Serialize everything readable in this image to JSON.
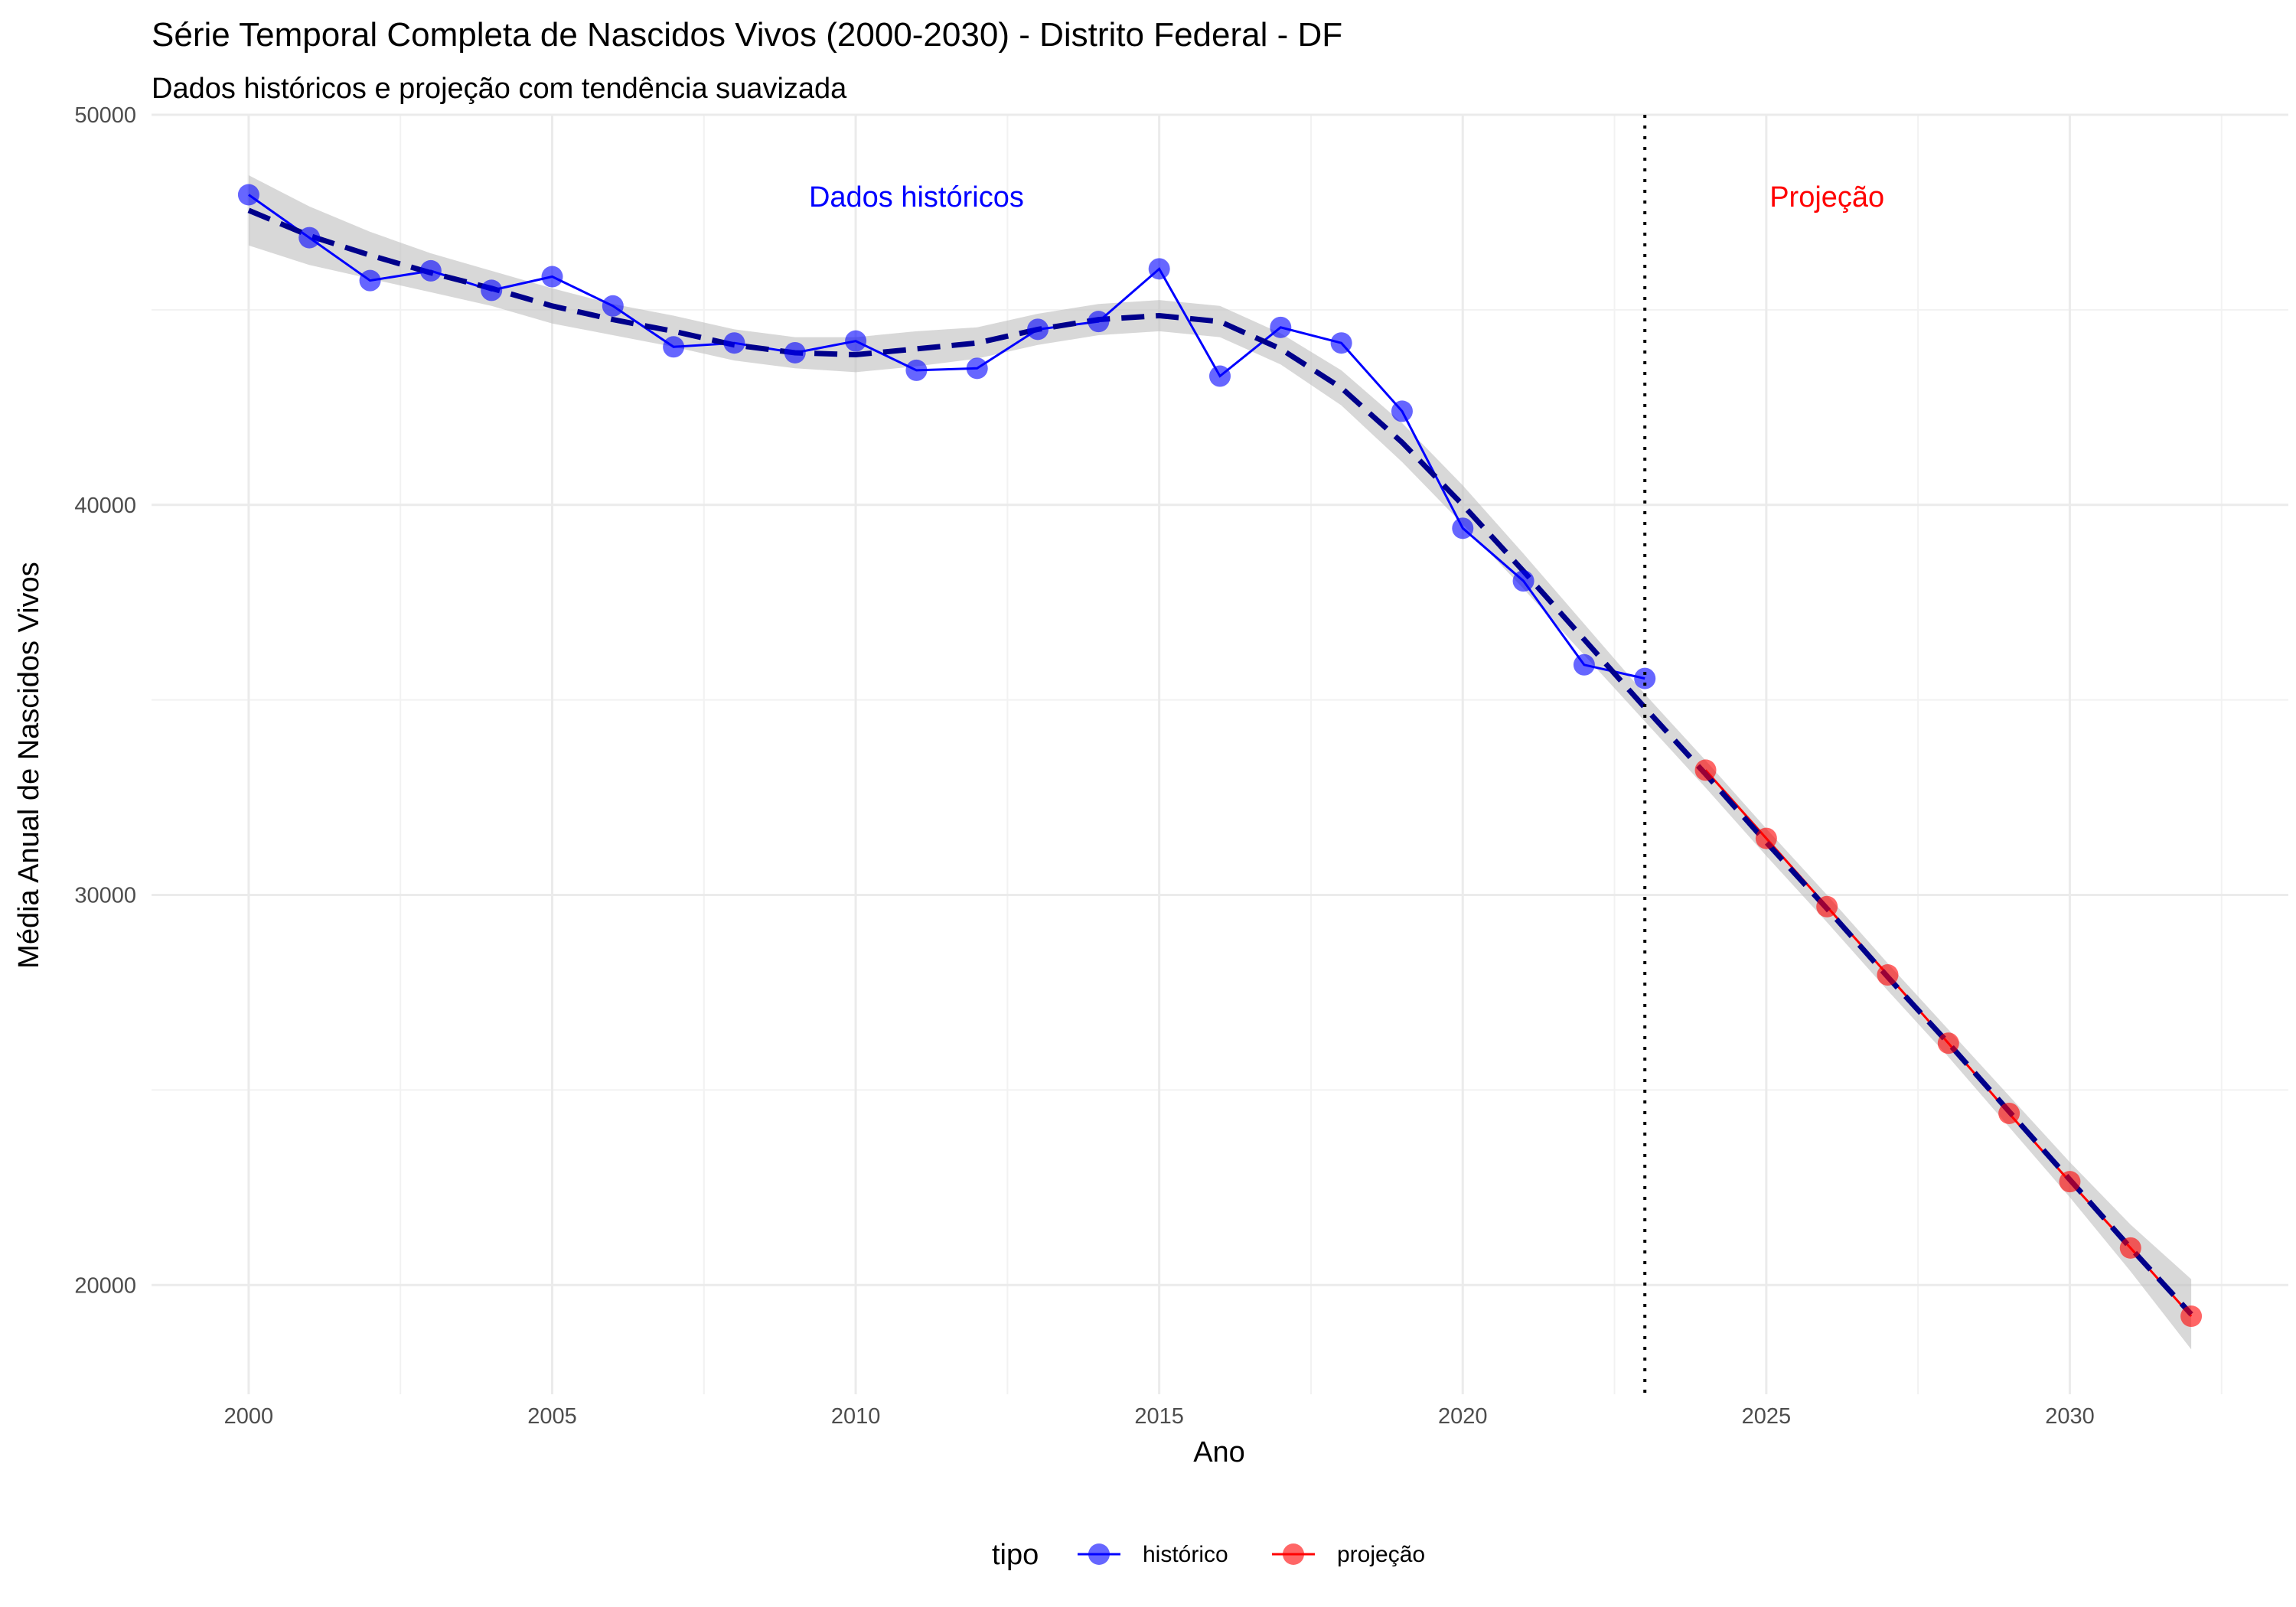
{
  "chart_data": {
    "type": "line",
    "title": "Série Temporal Completa de Nascidos Vivos (2000-2030) -  Distrito Federal - DF",
    "subtitle": "Dados históricos e projeção com tendência suavizada",
    "xlabel": "Ano",
    "ylabel": "Média Anual de Nascidos Vivos",
    "xlim": [
      1998.4,
      2033.6
    ],
    "ylim": [
      17200,
      50000
    ],
    "x_ticks": [
      2000,
      2005,
      2010,
      2015,
      2020,
      2025,
      2030
    ],
    "x_tick_labels": [
      "2000",
      "2005",
      "2010",
      "2015",
      "2020",
      "2025",
      "2030"
    ],
    "y_ticks": [
      20000,
      30000,
      40000,
      50000
    ],
    "y_tick_labels": [
      "20000",
      "30000",
      "40000",
      "50000"
    ],
    "grid": true,
    "vline_x": 2023,
    "annotations": [
      {
        "text": "Dados históricos",
        "x": 2011,
        "y": 47900,
        "color": "#0000ff"
      },
      {
        "text": "Projeção",
        "x": 2026,
        "y": 47900,
        "color": "#ff0000"
      }
    ],
    "series": [
      {
        "name": "histórico",
        "color": "#0000ff",
        "x": [
          2000,
          2001,
          2002,
          2003,
          2004,
          2005,
          2006,
          2007,
          2008,
          2009,
          2010,
          2011,
          2012,
          2013,
          2014,
          2015,
          2016,
          2017,
          2018,
          2019,
          2020,
          2021,
          2022,
          2023
        ],
        "y": [
          47950,
          46850,
          45750,
          46000,
          45500,
          45850,
          45100,
          44050,
          44150,
          43900,
          44200,
          43450,
          43500,
          44500,
          44700,
          46050,
          43300,
          44550,
          44150,
          42400,
          39400,
          38050,
          35900,
          35550
        ]
      },
      {
        "name": "projeção",
        "color": "#ff0000",
        "x": [
          2024,
          2025,
          2026,
          2027,
          2028,
          2029,
          2030,
          2031,
          2032
        ],
        "y": [
          33200,
          31450,
          29700,
          27950,
          26200,
          24400,
          22650,
          20950,
          19200
        ]
      }
    ],
    "trend": {
      "x": [
        2000,
        2001,
        2002,
        2003,
        2004,
        2005,
        2006,
        2007,
        2008,
        2009,
        2010,
        2011,
        2012,
        2013,
        2014,
        2015,
        2016,
        2017,
        2018,
        2019,
        2020,
        2021,
        2022,
        2023,
        2024,
        2025,
        2026,
        2027,
        2028,
        2029,
        2030,
        2031,
        2032
      ],
      "y": [
        47550,
        46900,
        46400,
        45950,
        45550,
        45100,
        44750,
        44450,
        44100,
        43900,
        43850,
        44000,
        44150,
        44500,
        44750,
        44850,
        44700,
        44000,
        43000,
        41600,
        40000,
        38300,
        36550,
        34800,
        33100,
        31350,
        29650,
        27900,
        26200,
        24450,
        22700,
        20950,
        19250
      ],
      "ci_width": [
        900,
        750,
        600,
        500,
        450,
        450,
        400,
        400,
        400,
        400,
        450,
        450,
        400,
        400,
        400,
        400,
        400,
        400,
        450,
        500,
        500,
        450,
        400,
        350,
        350,
        350,
        350,
        350,
        350,
        400,
        450,
        600,
        900
      ],
      "line_color": "#00008b",
      "ribbon_color": "#bebebe"
    },
    "legend": {
      "title": "tipo",
      "position": "bottom",
      "items": [
        "histórico",
        "projeção"
      ]
    }
  }
}
